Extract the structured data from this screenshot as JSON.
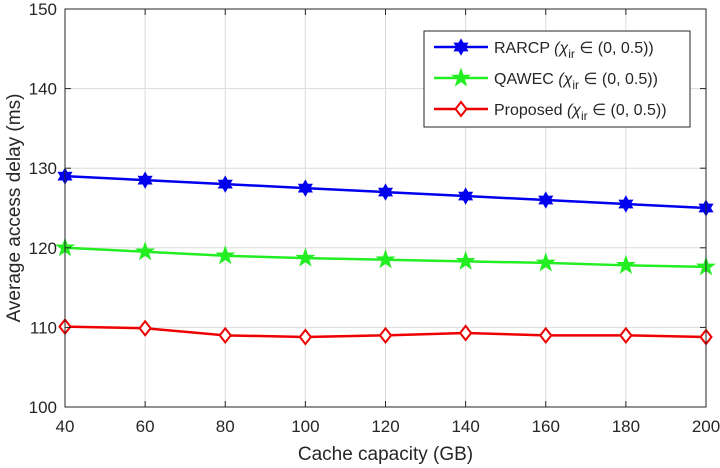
{
  "chart_data": {
    "type": "line",
    "title": "",
    "xlabel": "Cache capacity (GB)",
    "ylabel": "Average access delay (ms)",
    "x": [
      40,
      60,
      80,
      100,
      120,
      140,
      160,
      180,
      200
    ],
    "xlim": [
      40,
      200
    ],
    "ylim": [
      100,
      150
    ],
    "xticks": [
      "40",
      "60",
      "80",
      "100",
      "120",
      "140",
      "160",
      "180",
      "200"
    ],
    "yticks": [
      "100",
      "110",
      "120",
      "130",
      "140",
      "150"
    ],
    "grid": true,
    "legend_position": "top-right",
    "series": [
      {
        "name": "RARCP",
        "condition": "(χ",
        "subscript": "ir",
        "condition_tail": " ∈ (0, 0.5))",
        "color": "#0000ee",
        "marker": "hexagram",
        "values": [
          129.0,
          128.5,
          128.0,
          127.5,
          127.0,
          126.5,
          126.0,
          125.5,
          125.0
        ]
      },
      {
        "name": "QAWEC",
        "condition": "(χ",
        "subscript": "ir",
        "condition_tail": " ∈ (0, 0.5))",
        "color": "#22ee22",
        "marker": "pentagram",
        "values": [
          120.0,
          119.5,
          119.0,
          118.7,
          118.5,
          118.3,
          118.1,
          117.8,
          117.6
        ]
      },
      {
        "name": "Proposed",
        "condition": "(χ",
        "subscript": "ir",
        "condition_tail": " ∈ (0, 0.5))",
        "color": "#ee0000",
        "marker": "diamond",
        "values": [
          110.1,
          109.9,
          109.0,
          108.8,
          109.0,
          109.3,
          109.0,
          109.0,
          108.8
        ]
      }
    ]
  }
}
